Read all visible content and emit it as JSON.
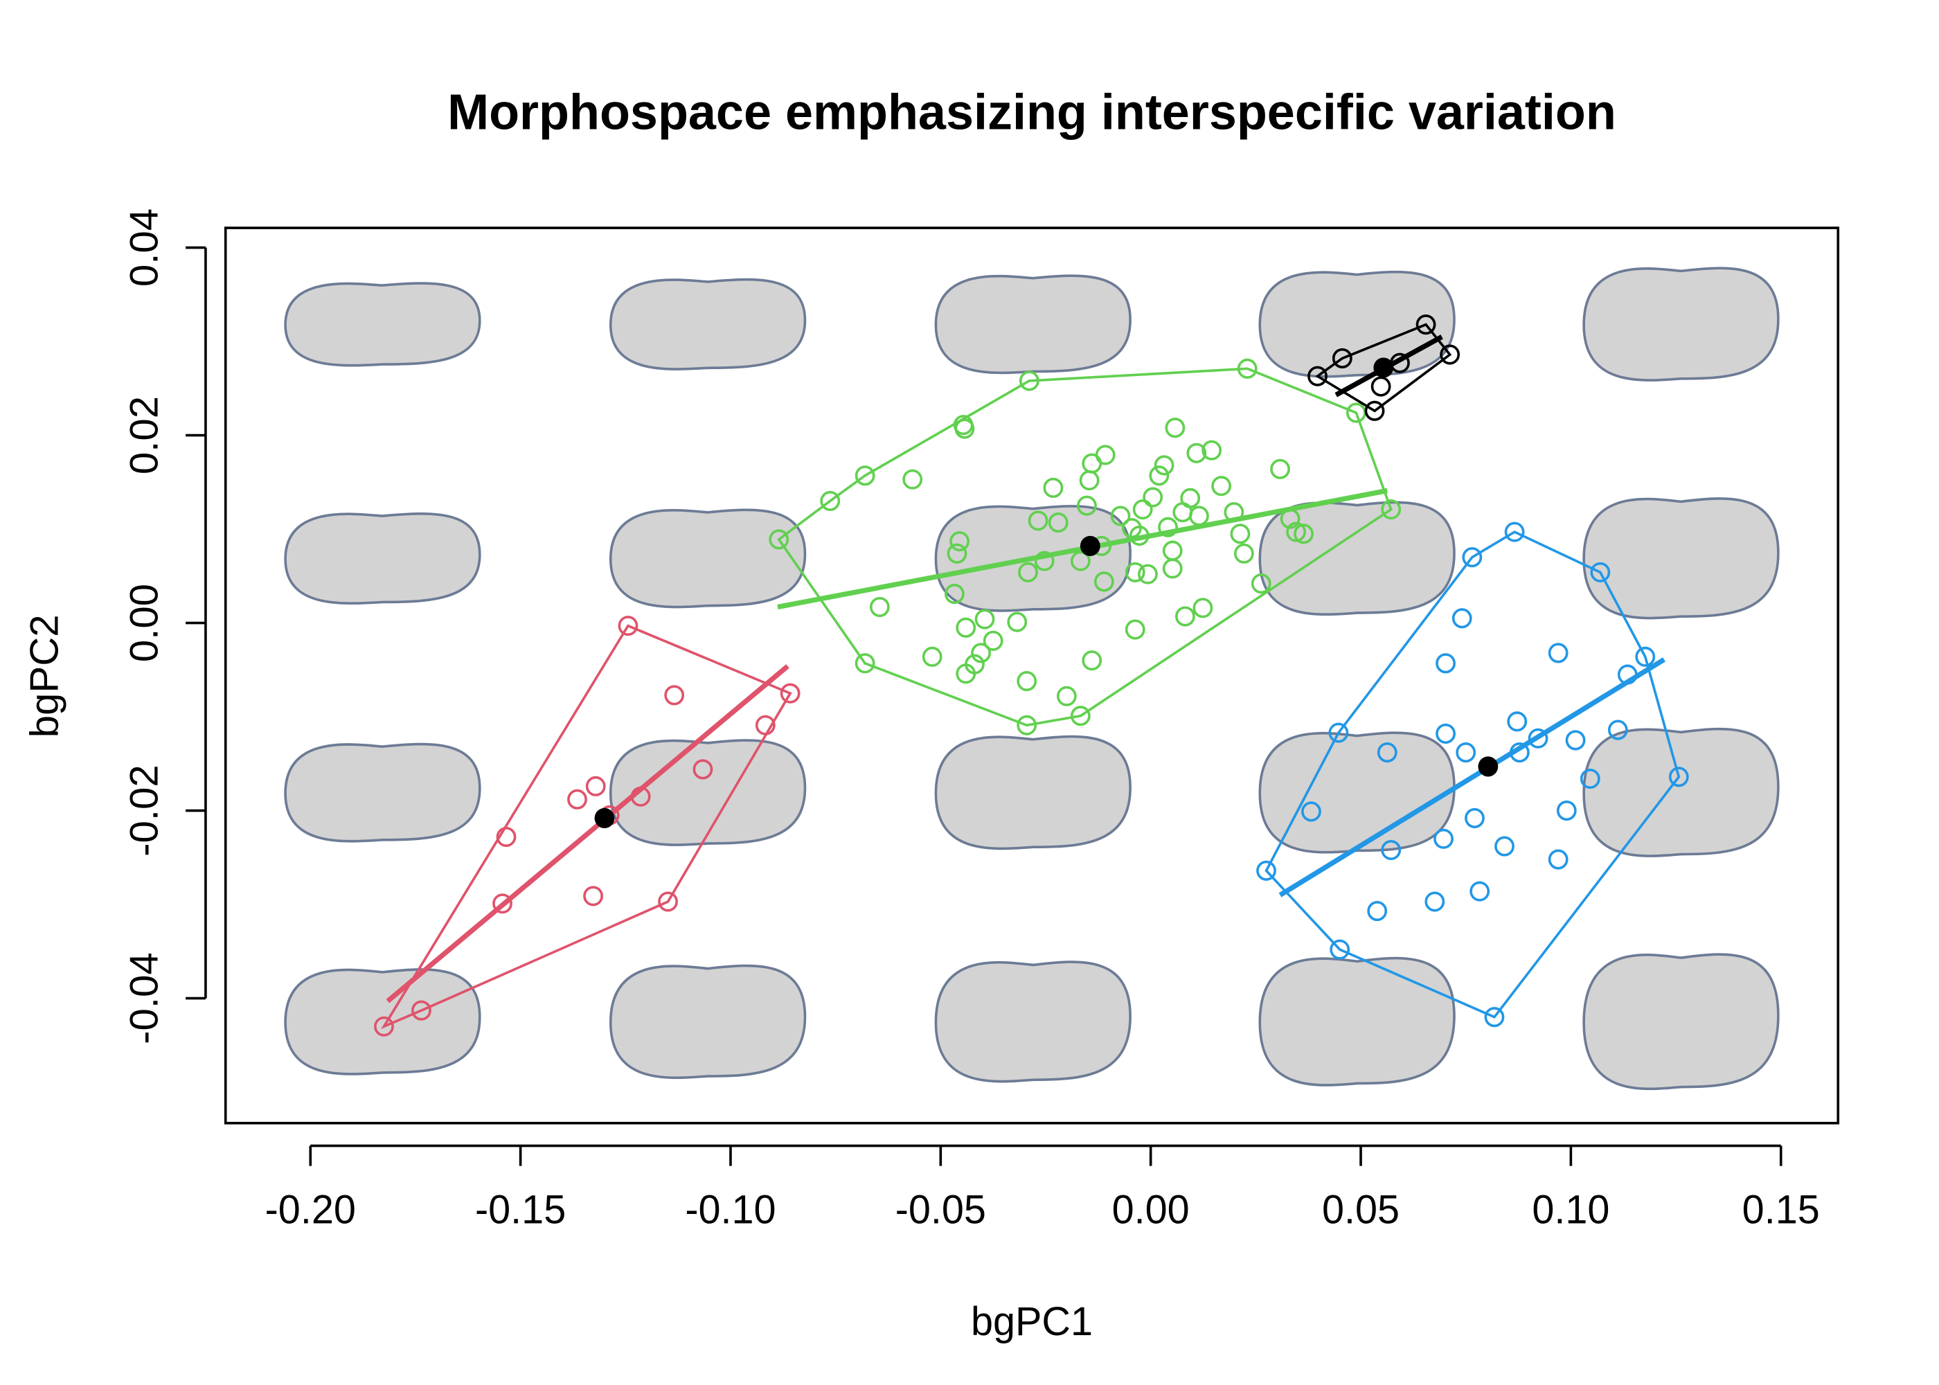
{
  "chart_data": {
    "type": "scatter",
    "title": "Morphospace emphasizing interspecific variation",
    "x_label": "bgPC1",
    "y_label": "bgPC2",
    "xlim": [
      -0.2202,
      0.1636
    ],
    "ylim": [
      -0.0533,
      0.0421
    ],
    "xticks": [
      {
        "value": -0.2,
        "label": "-0.20"
      },
      -0.15,
      {
        "value": -0.1,
        "label": "-0.10"
      },
      -0.05,
      {
        "value": 0,
        "label": "0.00"
      },
      0.05,
      {
        "value": 0.1,
        "label": "0.10"
      },
      0.15
    ],
    "yticks": [
      -0.04,
      -0.02,
      {
        "value": 0,
        "label": "0.00"
      },
      0.02,
      0.04
    ],
    "series": [
      {
        "color": "#DF536B",
        "x": [
          -0.1825,
          -0.1736,
          -0.1543,
          -0.1534,
          -0.1327,
          -0.1365,
          -0.1321,
          -0.1288,
          -0.1214,
          -0.1244,
          -0.1134,
          -0.1066,
          -0.0917,
          -0.0858,
          -0.1149
        ],
        "y": [
          -0.043,
          -0.0413,
          -0.0299,
          -0.0228,
          -0.0291,
          -0.0188,
          -0.0174,
          -0.0205,
          -0.0185,
          -0.0003,
          -0.0077,
          -0.0156,
          -0.0109,
          -0.0075,
          -0.0297
        ],
        "mean_x": -0.13,
        "mean_y": -0.0208,
        "line_x": [
          -0.1816,
          -0.0864
        ],
        "line_y": [
          -0.0403,
          -0.0046
        ]
      },
      {
        "color": "#61D04F",
        "x": [
          -0.0885,
          -0.0763,
          -0.068,
          -0.0567,
          -0.0446,
          -0.0443,
          -0.0289,
          0.023,
          0.0489,
          0.0572,
          0.0346,
          0.0263,
          -0.068,
          -0.0645,
          -0.052,
          -0.0295,
          -0.0295,
          -0.02,
          -0.0167,
          -0.014,
          -0.0455,
          -0.0461,
          -0.0467,
          -0.044,
          -0.044,
          -0.0419,
          -0.0404,
          -0.0375,
          -0.0395,
          -0.0318,
          -0.0292,
          -0.0253,
          -0.022,
          -0.0232,
          -0.014,
          -0.0108,
          -0.0146,
          -0.0152,
          -0.0111,
          -0.0117,
          -0.0072,
          -0.0045,
          -0.0027,
          -0.0019,
          -0.0007,
          0.0005,
          0.002,
          0.0032,
          0.0041,
          0.0058,
          0.0052,
          0.0076,
          0.0082,
          0.0094,
          0.0109,
          0.0124,
          0.0115,
          0.0145,
          0.0168,
          0.0198,
          0.0213,
          0.0222,
          0.0308,
          0.0332,
          0.0364,
          -0.0037,
          0.0052,
          -0.0037,
          -0.0167,
          -0.0268
        ],
        "y": [
          0.0089,
          0.013,
          0.0157,
          0.0153,
          0.0211,
          0.0207,
          0.0258,
          0.0271,
          0.0224,
          0.0121,
          0.0097,
          0.0042,
          -0.0043,
          0.0017,
          -0.0036,
          -0.0062,
          -0.0109,
          -0.0078,
          -0.0099,
          -0.004,
          0.0087,
          0.0074,
          0.0031,
          -0.0005,
          -0.0054,
          -0.0044,
          -0.0032,
          -0.0019,
          0.0004,
          0.0001,
          0.0054,
          0.0066,
          0.0107,
          0.0144,
          0.017,
          0.0179,
          0.0152,
          0.0125,
          0.0044,
          0.0082,
          0.0114,
          0.0101,
          0.0093,
          0.0121,
          0.0052,
          0.0134,
          0.0157,
          0.0168,
          0.0102,
          0.0208,
          0.0077,
          0.0118,
          0.0007,
          0.0133,
          0.0181,
          0.0016,
          0.0114,
          0.0184,
          0.0146,
          0.0118,
          0.0095,
          0.0074,
          0.0164,
          0.0111,
          0.0095,
          -0.0007,
          0.0058,
          0.0054,
          0.0066,
          0.0109
        ],
        "mean_x": -0.0144,
        "mean_y": 0.0082,
        "line_x": [
          -0.0888,
          0.0563
        ],
        "line_y": [
          0.0017,
          0.0141
        ]
      },
      {
        "color": "#000000",
        "x": [
          0.0397,
          0.0456,
          0.0533,
          0.0548,
          0.0593,
          0.0655,
          0.0712
        ],
        "y": [
          0.0263,
          0.0282,
          0.0226,
          0.0252,
          0.0277,
          0.0318,
          0.0286
        ],
        "mean_x": 0.0554,
        "mean_y": 0.0272,
        "line_x": [
          0.0441,
          0.0693
        ],
        "line_y": [
          0.0243,
          0.0305
        ]
      },
      {
        "color": "#2297E6",
        "x": [
          0.0275,
          0.0382,
          0.0447,
          0.045,
          0.0563,
          0.0539,
          0.0572,
          0.0676,
          0.0697,
          0.0702,
          0.0702,
          0.0741,
          0.075,
          0.0765,
          0.0771,
          0.0783,
          0.0818,
          0.0842,
          0.0872,
          0.0878,
          0.0866,
          0.0922,
          0.097,
          0.097,
          0.099,
          0.1011,
          0.1046,
          0.107,
          0.1112,
          0.1135,
          0.1177,
          0.1257
        ],
        "y": [
          -0.0264,
          -0.0201,
          -0.0117,
          -0.0348,
          -0.0138,
          -0.0307,
          -0.0242,
          -0.0297,
          -0.023,
          -0.0118,
          -0.0043,
          0.0005,
          -0.0138,
          0.007,
          -0.0208,
          -0.0286,
          -0.042,
          -0.0238,
          -0.0105,
          -0.0138,
          0.0097,
          -0.0123,
          -0.0252,
          -0.0032,
          -0.02,
          -0.0125,
          -0.0166,
          0.0054,
          -0.0114,
          -0.0055,
          -0.0036,
          -0.0164
        ],
        "mean_x": 0.0803,
        "mean_y": -0.0153,
        "line_x": [
          0.0308,
          0.1222
        ],
        "line_y": [
          -0.029,
          -0.0039
        ]
      }
    ]
  }
}
